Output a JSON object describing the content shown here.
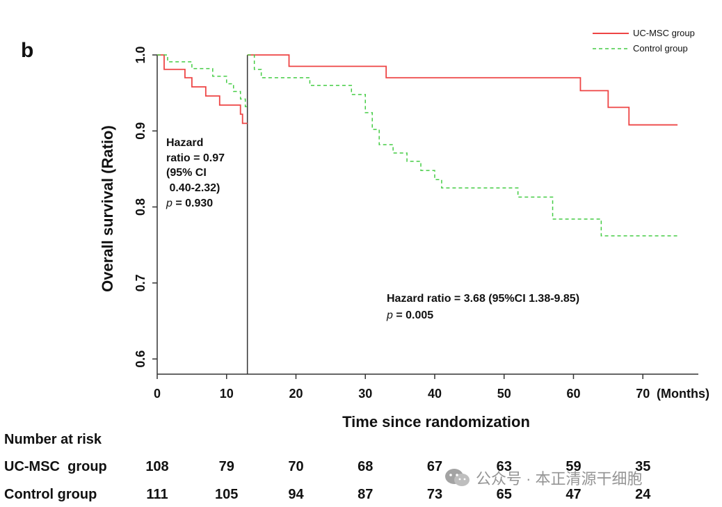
{
  "panel_label": "b",
  "colors": {
    "uc_msc": "#ee4444",
    "control": "#44cc44",
    "axis": "#333333",
    "text": "#111111"
  },
  "chart_data": {
    "type": "line",
    "subtype": "kaplan-meier",
    "xlabel": "Time since randomization",
    "x_unit_label": "(Months)",
    "ylabel": "Overall survival (Ratio)",
    "xlim": [
      0,
      78
    ],
    "ylim": [
      0.58,
      1.0
    ],
    "x_ticks": [
      0,
      10,
      20,
      30,
      40,
      50,
      60,
      70
    ],
    "x_tick_labels": [
      "0",
      "10",
      "20",
      "30",
      "40",
      "50",
      "60",
      "70"
    ],
    "y_ticks": [
      0.6,
      0.7,
      0.8,
      0.9,
      1.0
    ],
    "y_tick_labels": [
      "0.6",
      "0.7",
      "0.8",
      "0.9",
      "1.0"
    ],
    "cutoff_line_x": 13,
    "legend_position": "top-right",
    "series": [
      {
        "name": "UC-MSC group",
        "style": "solid",
        "steps": [
          [
            0,
            1.0
          ],
          [
            1,
            0.981
          ],
          [
            4,
            0.97
          ],
          [
            5,
            0.958
          ],
          [
            7,
            0.946
          ],
          [
            9,
            0.934
          ],
          [
            12,
            0.922
          ],
          [
            12.3,
            0.91
          ],
          [
            13,
            0.91
          ]
        ]
      },
      {
        "name": "UC-MSC group",
        "style": "solid",
        "steps": [
          [
            13,
            1.0
          ],
          [
            19,
            0.985
          ],
          [
            33,
            0.97
          ],
          [
            61,
            0.953
          ],
          [
            65,
            0.931
          ],
          [
            68,
            0.908
          ],
          [
            75,
            0.908
          ]
        ]
      },
      {
        "name": "Control group",
        "style": "dashed",
        "steps": [
          [
            0,
            1.0
          ],
          [
            1.5,
            0.991
          ],
          [
            5,
            0.982
          ],
          [
            8,
            0.972
          ],
          [
            10,
            0.962
          ],
          [
            11,
            0.952
          ],
          [
            12,
            0.942
          ],
          [
            12.7,
            0.932
          ],
          [
            13,
            0.932
          ]
        ]
      },
      {
        "name": "Control group",
        "style": "dashed",
        "steps": [
          [
            13,
            1.0
          ],
          [
            14,
            0.981
          ],
          [
            15,
            0.97
          ],
          [
            22,
            0.96
          ],
          [
            28,
            0.948
          ],
          [
            30,
            0.924
          ],
          [
            31,
            0.902
          ],
          [
            32,
            0.882
          ],
          [
            34,
            0.871
          ],
          [
            36,
            0.86
          ],
          [
            38,
            0.848
          ],
          [
            40,
            0.836
          ],
          [
            41,
            0.825
          ],
          [
            52,
            0.813
          ],
          [
            57,
            0.784
          ],
          [
            64,
            0.762
          ],
          [
            75,
            0.762
          ]
        ]
      }
    ],
    "legend": [
      {
        "name": "UC-MSC group",
        "style": "solid"
      },
      {
        "name": "Control group",
        "style": "dashed"
      }
    ],
    "annotations": {
      "early": {
        "lines": [
          "Hazard",
          "ratio = 0.97",
          "(95% CI",
          " 0.40-2.32)"
        ],
        "p_label": "p",
        "p_value": " = 0.930"
      },
      "late": {
        "line1": "Hazard ratio = 3.68 (95%CI 1.38-9.85)",
        "p_label": "p",
        "p_value": " = 0.005"
      }
    }
  },
  "risk_table": {
    "title": "Number at risk",
    "rows": [
      {
        "label": "UC-MSC  group",
        "values": [
          "108",
          "79",
          "70",
          "68",
          "67",
          "63",
          "59",
          "35"
        ]
      },
      {
        "label": "Control group",
        "values": [
          "111",
          "105",
          "94",
          "87",
          "73",
          "65",
          "47",
          "24"
        ]
      }
    ]
  },
  "watermark": {
    "text": "公众号 · 本正清源干细胞",
    "icon": "wechat-icon"
  }
}
